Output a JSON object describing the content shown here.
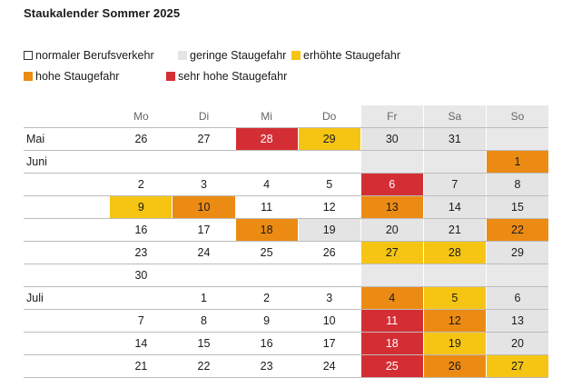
{
  "title": "Staukalender Sommer 2025",
  "legend": {
    "row1": [
      {
        "label": "normaler Berufsverkehr",
        "level": 1,
        "color": "#ffffff"
      },
      {
        "label": "geringe Staugefahr",
        "level": 2,
        "color": "#e4e4e4"
      },
      {
        "label": "erhöhte Staugefahr",
        "level": 3,
        "color": "#f6c514"
      }
    ],
    "row2": [
      {
        "label": "hohe Staugefahr",
        "level": 4,
        "color": "#ec8b13"
      },
      {
        "label": "sehr hohe Staugefahr",
        "level": 5,
        "color": "#d42e35"
      }
    ]
  },
  "weekdays": [
    "Mo",
    "Di",
    "Mi",
    "Do",
    "Fr",
    "Sa",
    "So"
  ],
  "rows": [
    {
      "month": "Mai",
      "cells": [
        {
          "d": "26",
          "l": 1
        },
        {
          "d": "27",
          "l": 1
        },
        {
          "d": "28",
          "l": 5
        },
        {
          "d": "29",
          "l": 3
        },
        {
          "d": "30",
          "l": 2
        },
        {
          "d": "31",
          "l": 2
        },
        {
          "d": "",
          "l": 0
        }
      ]
    },
    {
      "month": "Juni",
      "cells": [
        {
          "d": "",
          "l": 0
        },
        {
          "d": "",
          "l": 0
        },
        {
          "d": "",
          "l": 0
        },
        {
          "d": "",
          "l": 0
        },
        {
          "d": "",
          "l": 0
        },
        {
          "d": "",
          "l": 0
        },
        {
          "d": "1",
          "l": 4
        }
      ]
    },
    {
      "month": "",
      "cells": [
        {
          "d": "2",
          "l": 1
        },
        {
          "d": "3",
          "l": 1
        },
        {
          "d": "4",
          "l": 1
        },
        {
          "d": "5",
          "l": 1
        },
        {
          "d": "6",
          "l": 5
        },
        {
          "d": "7",
          "l": 2
        },
        {
          "d": "8",
          "l": 2
        }
      ]
    },
    {
      "month": "",
      "cells": [
        {
          "d": "9",
          "l": 3
        },
        {
          "d": "10",
          "l": 4
        },
        {
          "d": "11",
          "l": 1
        },
        {
          "d": "12",
          "l": 1
        },
        {
          "d": "13",
          "l": 4
        },
        {
          "d": "14",
          "l": 2
        },
        {
          "d": "15",
          "l": 2
        }
      ]
    },
    {
      "month": "",
      "cells": [
        {
          "d": "16",
          "l": 1
        },
        {
          "d": "17",
          "l": 1
        },
        {
          "d": "18",
          "l": 4
        },
        {
          "d": "19",
          "l": 2
        },
        {
          "d": "20",
          "l": 2
        },
        {
          "d": "21",
          "l": 2
        },
        {
          "d": "22",
          "l": 4
        }
      ]
    },
    {
      "month": "",
      "cells": [
        {
          "d": "23",
          "l": 1
        },
        {
          "d": "24",
          "l": 1
        },
        {
          "d": "25",
          "l": 1
        },
        {
          "d": "26",
          "l": 1
        },
        {
          "d": "27",
          "l": 3
        },
        {
          "d": "28",
          "l": 3
        },
        {
          "d": "29",
          "l": 2
        }
      ]
    },
    {
      "month": "",
      "cells": [
        {
          "d": "30",
          "l": 1
        },
        {
          "d": "",
          "l": 0
        },
        {
          "d": "",
          "l": 0
        },
        {
          "d": "",
          "l": 0
        },
        {
          "d": "",
          "l": 0
        },
        {
          "d": "",
          "l": 0
        },
        {
          "d": "",
          "l": 0
        }
      ]
    },
    {
      "month": "Juli",
      "cells": [
        {
          "d": "",
          "l": 0
        },
        {
          "d": "1",
          "l": 1
        },
        {
          "d": "2",
          "l": 1
        },
        {
          "d": "3",
          "l": 1
        },
        {
          "d": "4",
          "l": 4
        },
        {
          "d": "5",
          "l": 3
        },
        {
          "d": "6",
          "l": 2
        }
      ]
    },
    {
      "month": "",
      "cells": [
        {
          "d": "7",
          "l": 1
        },
        {
          "d": "8",
          "l": 1
        },
        {
          "d": "9",
          "l": 1
        },
        {
          "d": "10",
          "l": 1
        },
        {
          "d": "11",
          "l": 5
        },
        {
          "d": "12",
          "l": 4
        },
        {
          "d": "13",
          "l": 2
        }
      ]
    },
    {
      "month": "",
      "cells": [
        {
          "d": "14",
          "l": 1
        },
        {
          "d": "15",
          "l": 1
        },
        {
          "d": "16",
          "l": 1
        },
        {
          "d": "17",
          "l": 1
        },
        {
          "d": "18",
          "l": 5
        },
        {
          "d": "19",
          "l": 3
        },
        {
          "d": "20",
          "l": 2
        }
      ]
    },
    {
      "month": "",
      "cells": [
        {
          "d": "21",
          "l": 1
        },
        {
          "d": "22",
          "l": 1
        },
        {
          "d": "23",
          "l": 1
        },
        {
          "d": "24",
          "l": 1
        },
        {
          "d": "25",
          "l": 5
        },
        {
          "d": "26",
          "l": 4
        },
        {
          "d": "27",
          "l": 3
        }
      ]
    }
  ]
}
